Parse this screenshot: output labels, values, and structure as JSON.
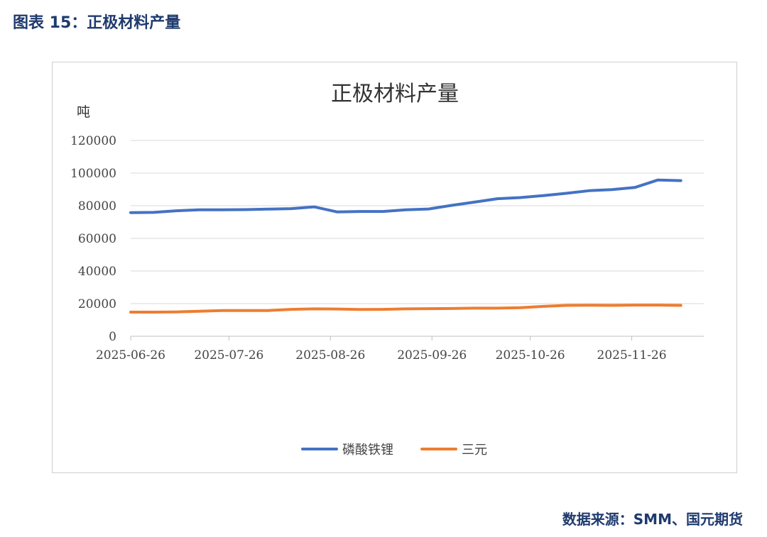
{
  "figure_label": "图表 15：正极材料产量",
  "source": "数据来源：SMM、国元期货",
  "colors": {
    "lfp": "#4472c4",
    "ncm": "#ed7d31",
    "grid": "#d9d9d9",
    "heading": "#1f3a6e"
  },
  "chart_data": {
    "type": "line",
    "title": "正极材料产量",
    "ylabel": "吨",
    "xlabel": "",
    "ylim": [
      0,
      120000
    ],
    "yticks": [
      0,
      20000,
      40000,
      60000,
      80000,
      100000,
      120000
    ],
    "ytick_labels": [
      "0",
      "20000",
      "40000",
      "60000",
      "80000",
      "100000",
      "120000"
    ],
    "xlim": [
      "2025-06-26",
      "2025-12-18"
    ],
    "xticks": [
      "2025-06-26",
      "2025-07-26",
      "2025-08-26",
      "2025-09-26",
      "2025-10-26",
      "2025-11-26"
    ],
    "grid": true,
    "legend": "bottom",
    "x": [
      "2025-06-26",
      "2025-07-03",
      "2025-07-10",
      "2025-07-17",
      "2025-07-24",
      "2025-07-31",
      "2025-08-07",
      "2025-08-14",
      "2025-08-21",
      "2025-08-28",
      "2025-09-04",
      "2025-09-11",
      "2025-09-18",
      "2025-09-25",
      "2025-10-02",
      "2025-10-09",
      "2025-10-16",
      "2025-10-23",
      "2025-10-30",
      "2025-11-06",
      "2025-11-13",
      "2025-11-20",
      "2025-11-27",
      "2025-12-04",
      "2025-12-11"
    ],
    "series": [
      {
        "name": "磷酸铁锂",
        "color": "#4472c4",
        "values": [
          75800,
          75900,
          76900,
          77500,
          77500,
          77600,
          77900,
          78200,
          79300,
          76200,
          76500,
          76500,
          77500,
          78000,
          80200,
          82200,
          84300,
          85000,
          86200,
          87600,
          89200,
          89900,
          91200,
          95800,
          95400
        ]
      },
      {
        "name": "三元",
        "color": "#ed7d31",
        "values": [
          14800,
          14800,
          14900,
          15300,
          15800,
          15800,
          15800,
          16500,
          16800,
          16700,
          16400,
          16500,
          16800,
          16900,
          17000,
          17200,
          17200,
          17500,
          18300,
          18900,
          19000,
          18900,
          19100,
          19100,
          18900
        ]
      }
    ]
  }
}
